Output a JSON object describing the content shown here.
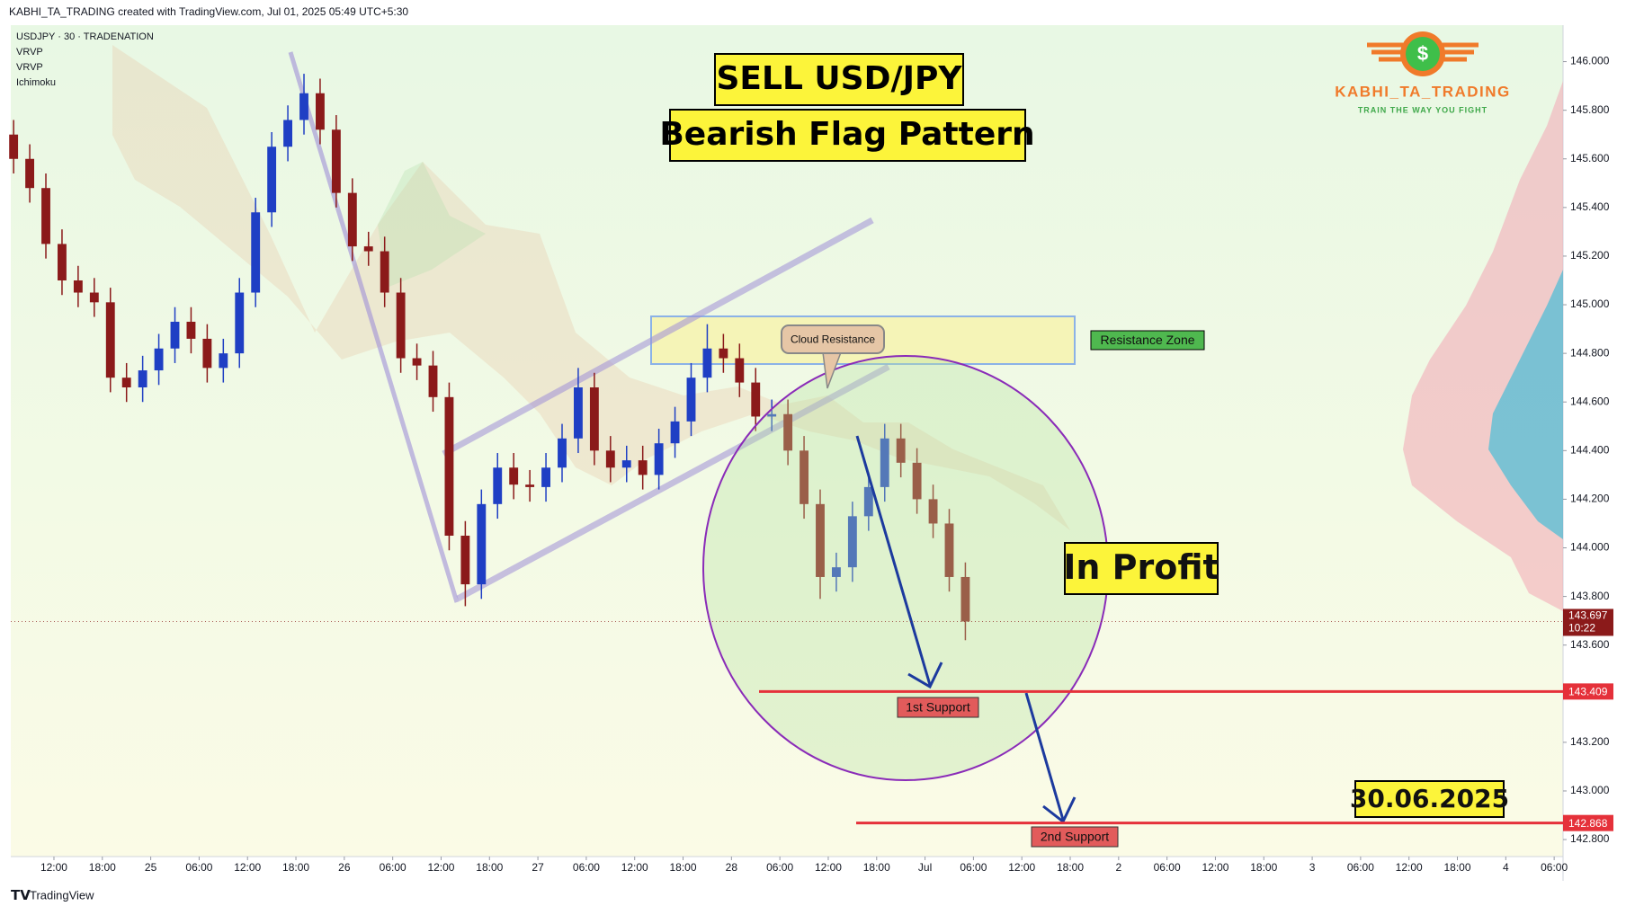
{
  "header": {
    "credit": "KABHI_TA_TRADING created with TradingView.com, Jul 01, 2025 05:49 UTC+5:30",
    "symbol": "USDJPY · 30 · TRADENATION",
    "indicators": [
      "VRVP",
      "VRVP",
      "Ichimoku"
    ]
  },
  "logo": {
    "symbol": "$",
    "name": "KABHI_TA_TRADING",
    "tagline": "TRAIN THE WAY YOU FIGHT"
  },
  "footer": "TradingView",
  "chart_data": {
    "type": "candlestick",
    "title": "SELL USD/JPY",
    "subtitle": "Bearish Flag Pattern",
    "up_color": "#1f3fc4",
    "down_color": "#8b1a1a",
    "x": [
      -5,
      -3,
      -1,
      1,
      3,
      5,
      7,
      9,
      11,
      13,
      15,
      17,
      19,
      21,
      23,
      25,
      27,
      29,
      31,
      33,
      35,
      37,
      39,
      41,
      43,
      45,
      47,
      49,
      51,
      53,
      55,
      57,
      59,
      61,
      63,
      65,
      67,
      69,
      71,
      73,
      75,
      77,
      79,
      81,
      83,
      85,
      87,
      89,
      91,
      93,
      95,
      97,
      99,
      101,
      103,
      105,
      107,
      109,
      111,
      113
    ],
    "open": [
      145.7,
      145.6,
      145.48,
      145.25,
      145.1,
      145.05,
      145.01,
      144.7,
      144.66,
      144.73,
      144.82,
      144.93,
      144.86,
      144.74,
      144.8,
      145.05,
      145.38,
      145.65,
      145.76,
      145.87,
      145.72,
      145.46,
      145.24,
      145.22,
      145.05,
      144.78,
      144.75,
      144.62,
      144.05,
      143.85,
      144.18,
      144.33,
      144.26,
      144.25,
      144.33,
      144.45,
      144.66,
      144.4,
      144.33,
      144.36,
      144.3,
      144.43,
      144.52,
      144.7,
      144.82,
      144.78,
      144.68,
      144.54,
      144.55,
      144.4,
      144.18,
      143.88,
      143.92,
      144.13,
      144.25,
      144.45,
      144.35,
      144.2,
      144.1,
      143.88
    ],
    "high": [
      145.76,
      145.66,
      145.54,
      145.31,
      145.16,
      145.11,
      145.07,
      144.76,
      144.79,
      144.88,
      144.99,
      144.99,
      144.92,
      144.86,
      145.11,
      145.44,
      145.71,
      145.82,
      145.95,
      145.93,
      145.78,
      145.52,
      145.3,
      145.28,
      145.11,
      144.84,
      144.81,
      144.68,
      144.11,
      144.24,
      144.39,
      144.39,
      144.32,
      144.39,
      144.51,
      144.74,
      144.72,
      144.46,
      144.42,
      144.42,
      144.49,
      144.58,
      144.76,
      144.92,
      144.88,
      144.84,
      144.74,
      144.61,
      144.61,
      144.46,
      144.24,
      143.98,
      144.19,
      144.31,
      144.51,
      144.51,
      144.41,
      144.26,
      144.16,
      143.94
    ],
    "low": [
      145.54,
      145.42,
      145.19,
      145.04,
      144.99,
      144.95,
      144.64,
      144.6,
      144.6,
      144.67,
      144.76,
      144.8,
      144.68,
      144.68,
      144.74,
      144.99,
      145.32,
      145.59,
      145.7,
      145.66,
      145.4,
      145.18,
      145.16,
      144.99,
      144.72,
      144.69,
      144.56,
      143.99,
      143.76,
      143.79,
      144.12,
      144.2,
      144.19,
      144.19,
      144.27,
      144.39,
      144.34,
      144.27,
      144.27,
      144.24,
      144.24,
      144.37,
      144.46,
      144.64,
      144.72,
      144.62,
      144.48,
      144.48,
      144.34,
      144.12,
      143.79,
      143.82,
      143.86,
      144.07,
      144.19,
      144.29,
      144.14,
      144.04,
      143.82,
      143.62
    ],
    "close": [
      145.6,
      145.48,
      145.25,
      145.1,
      145.05,
      145.01,
      144.7,
      144.66,
      144.73,
      144.82,
      144.93,
      144.86,
      144.74,
      144.8,
      145.05,
      145.38,
      145.65,
      145.76,
      145.87,
      145.72,
      145.46,
      145.24,
      145.22,
      145.05,
      144.78,
      144.75,
      144.62,
      144.05,
      143.85,
      144.18,
      144.33,
      144.26,
      144.25,
      144.33,
      144.45,
      144.66,
      144.4,
      144.33,
      144.36,
      144.3,
      144.43,
      144.52,
      144.7,
      144.82,
      144.78,
      144.68,
      144.54,
      144.55,
      144.4,
      144.18,
      143.88,
      143.92,
      144.13,
      144.25,
      144.45,
      144.35,
      144.2,
      144.1,
      143.88,
      143.697
    ],
    "xlim": [
      -5.35,
      187.1
    ],
    "ylim": [
      142.73,
      146.15
    ],
    "xticks": [
      {
        "value": 0,
        "label": "12:00"
      },
      {
        "value": 6,
        "label": "18:00"
      },
      {
        "value": 12,
        "label": "25"
      },
      {
        "value": 18,
        "label": "06:00"
      },
      {
        "value": 24,
        "label": "12:00"
      },
      {
        "value": 30,
        "label": "18:00"
      },
      {
        "value": 36,
        "label": "26"
      },
      {
        "value": 42,
        "label": "06:00"
      },
      {
        "value": 48,
        "label": "12:00"
      },
      {
        "value": 54,
        "label": "18:00"
      },
      {
        "value": 60,
        "label": "27"
      },
      {
        "value": 66,
        "label": "06:00"
      },
      {
        "value": 72,
        "label": "12:00"
      },
      {
        "value": 78,
        "label": "18:00"
      },
      {
        "value": 84,
        "label": "28"
      },
      {
        "value": 90,
        "label": "06:00"
      },
      {
        "value": 96,
        "label": "12:00"
      },
      {
        "value": 102,
        "label": "18:00"
      },
      {
        "value": 108,
        "label": "Jul"
      },
      {
        "value": 114,
        "label": "06:00"
      },
      {
        "value": 120,
        "label": "12:00"
      },
      {
        "value": 126,
        "label": "18:00"
      },
      {
        "value": 132,
        "label": "2"
      },
      {
        "value": 138,
        "label": "06:00"
      },
      {
        "value": 144,
        "label": "12:00"
      },
      {
        "value": 150,
        "label": "18:00"
      },
      {
        "value": 156,
        "label": "3"
      },
      {
        "value": 162,
        "label": "06:00"
      },
      {
        "value": 168,
        "label": "12:00"
      },
      {
        "value": 174,
        "label": "18:00"
      },
      {
        "value": 180,
        "label": "4"
      },
      {
        "value": 186,
        "label": "06:00"
      }
    ],
    "yticks": [
      {
        "value": 142.8,
        "label": "142.800"
      },
      {
        "value": 143.0,
        "label": "143.000"
      },
      {
        "value": 143.2,
        "label": "143.200"
      },
      {
        "value": 143.4,
        "label": "143.400"
      },
      {
        "value": 143.6,
        "label": "143.600"
      },
      {
        "value": 143.8,
        "label": "143.800"
      },
      {
        "value": 144.0,
        "label": "144.000"
      },
      {
        "value": 144.2,
        "label": "144.200"
      },
      {
        "value": 144.4,
        "label": "144.400"
      },
      {
        "value": 144.6,
        "label": "144.600"
      },
      {
        "value": 144.8,
        "label": "144.800"
      },
      {
        "value": 145.0,
        "label": "145.000"
      },
      {
        "value": 145.2,
        "label": "145.200"
      },
      {
        "value": 145.4,
        "label": "145.400"
      },
      {
        "value": 145.6,
        "label": "145.600"
      },
      {
        "value": 145.8,
        "label": "145.800"
      },
      {
        "value": 146.0,
        "label": "146.000"
      }
    ],
    "price_line": {
      "value": 143.697,
      "countdown": "10:22"
    },
    "levels": [
      {
        "name": "1st Support",
        "value": 143.409
      },
      {
        "name": "2nd Support",
        "value": 142.868
      }
    ],
    "annotations": [
      "In Profit",
      "30.06.2025",
      "Resistance Zone",
      "Cloud Resistance"
    ]
  }
}
